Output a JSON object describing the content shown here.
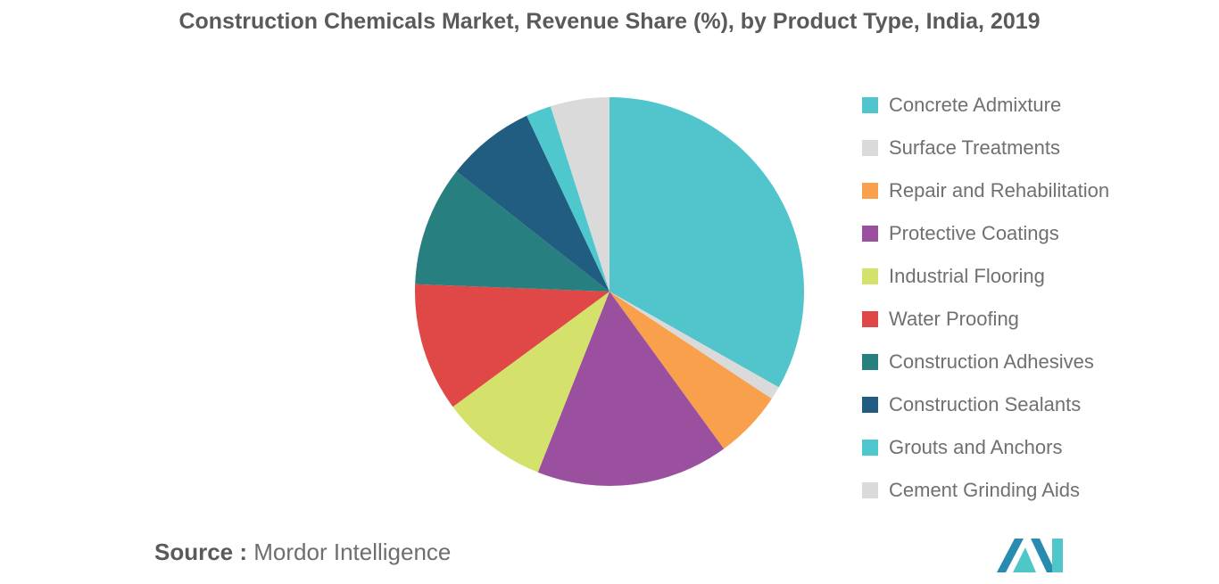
{
  "chart_data": {
    "type": "pie",
    "title": "Construction Chemicals Market, Revenue Share (%), by Product Type, India, 2019",
    "categories": [
      "Concrete Admixture",
      "Surface Treatments",
      "Repair and Rehabilitation",
      "Protective Coatings",
      "Industrial Flooring",
      "Water Proofing",
      "Construction Adhesives",
      "Construction Sealants",
      "Grouts and Anchors",
      "Cement Grinding Aids"
    ],
    "values": [
      33.2,
      1.1,
      5.7,
      16.0,
      8.9,
      10.7,
      10.0,
      7.4,
      2.1,
      4.9
    ],
    "colors": [
      "#51c4cc",
      "#dadada",
      "#f8a04c",
      "#9b4f9f",
      "#d4e16a",
      "#e04747",
      "#287f80",
      "#215d80",
      "#4ec8cd",
      "#dadada"
    ],
    "legend_position": "right"
  },
  "source": {
    "prefix": "Source :",
    "name": "Mordor Intelligence"
  }
}
